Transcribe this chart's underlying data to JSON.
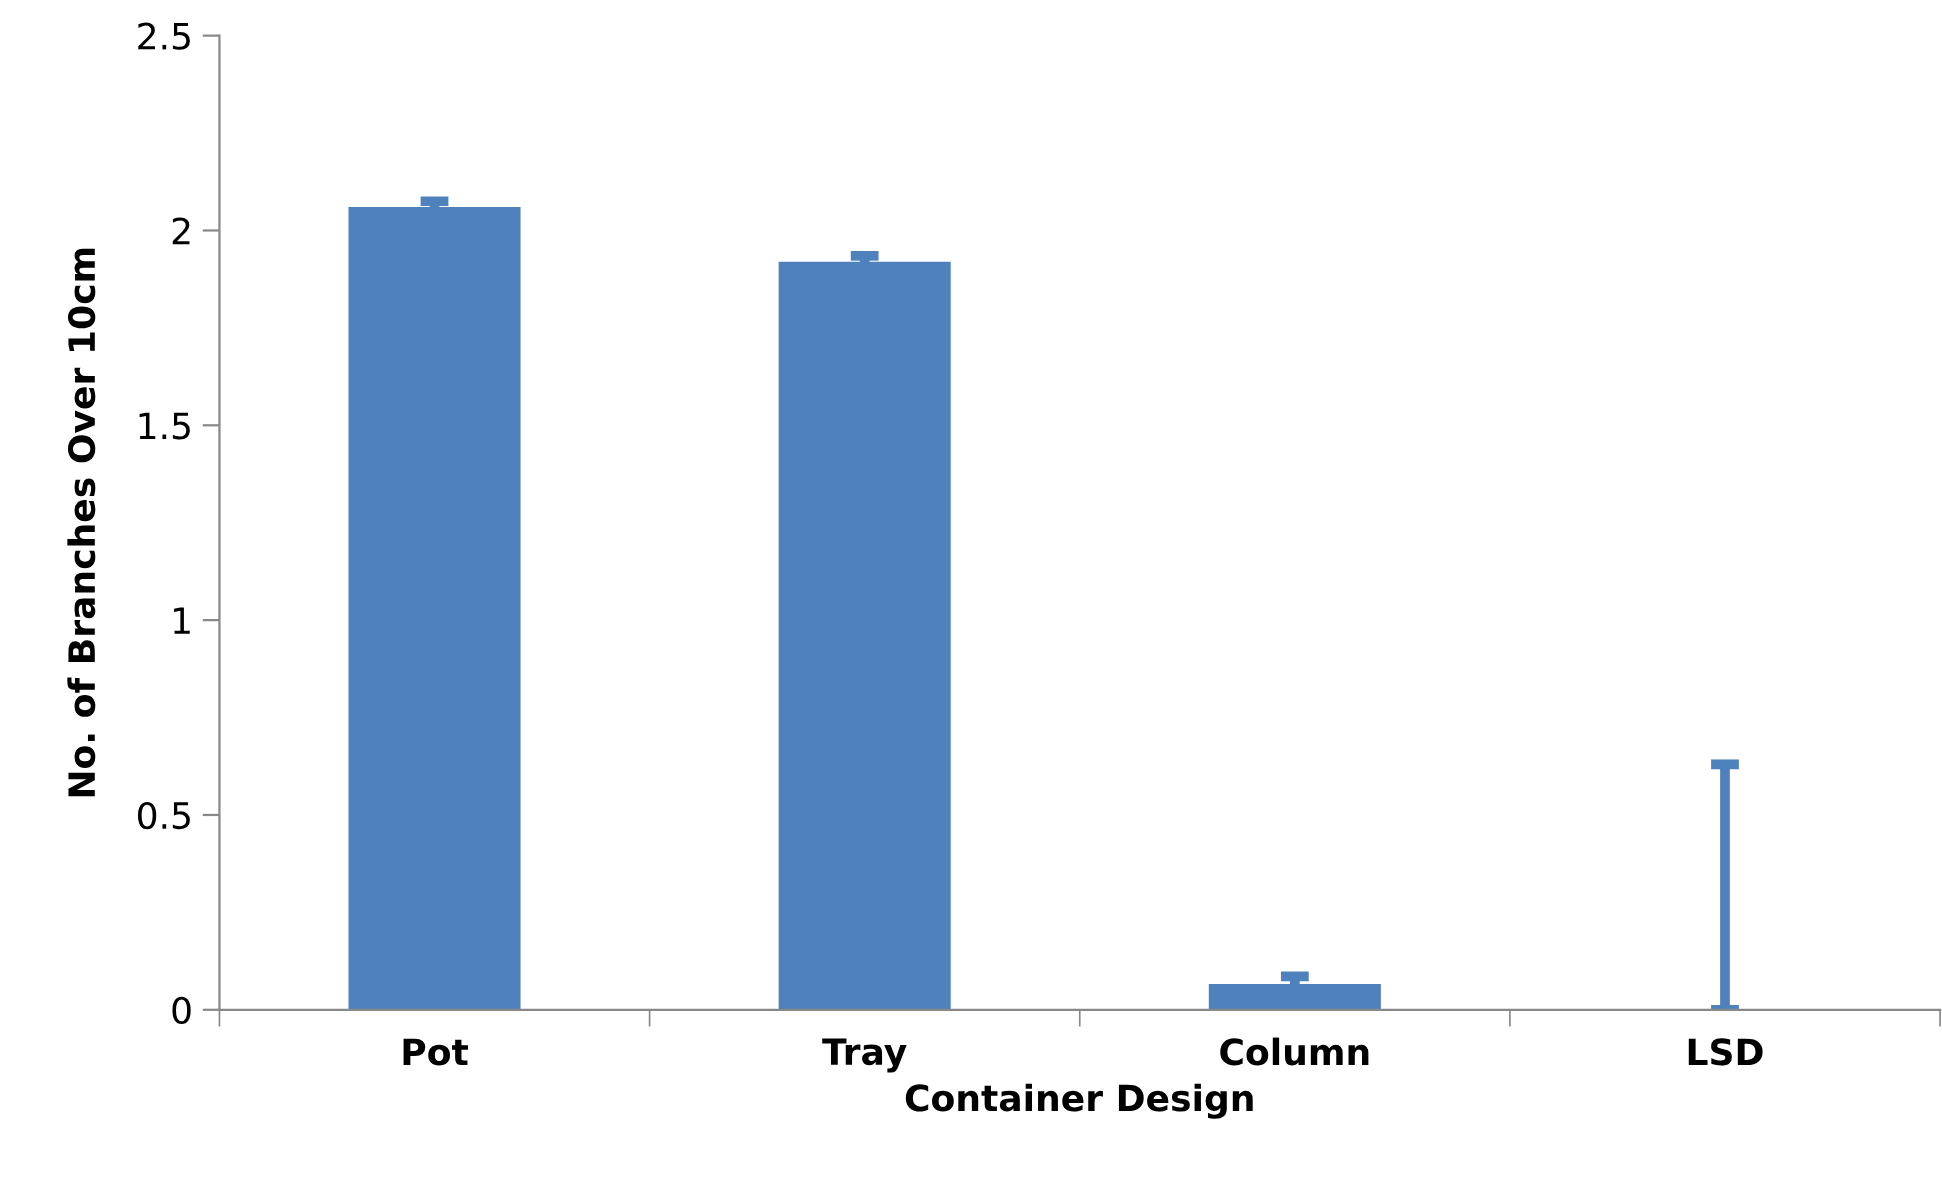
{
  "chart_data": {
    "type": "bar",
    "xlabel": "Container Design",
    "ylabel": "No. of Branches Over 10cm",
    "categories": [
      "Pot",
      "Tray",
      "Column",
      "LSD"
    ],
    "values": [
      2.06,
      1.92,
      0.066,
      0
    ],
    "errors": [
      0.015,
      0.015,
      0.02,
      [
        0,
        0.63
      ]
    ],
    "color": "#4f81bd",
    "ylim": [
      0,
      2.5
    ],
    "yticks": [
      0,
      0.5,
      1,
      1.5,
      2,
      2.5
    ],
    "grid": false,
    "legend": false
  }
}
